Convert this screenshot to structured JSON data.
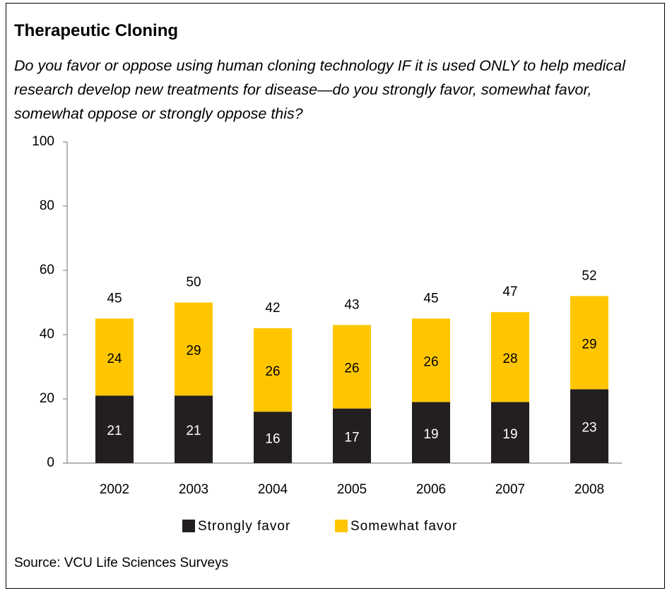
{
  "chart_data": {
    "type": "stacked_bar",
    "title": "Therapeutic Cloning",
    "subtitle": "Do you favor or oppose using human cloning technology IF it is used ONLY to help medical research develop new treatments for disease—do you strongly favor, somewhat favor, somewhat oppose or strongly oppose this?",
    "categories": [
      "2002",
      "2003",
      "2004",
      "2005",
      "2006",
      "2007",
      "2008"
    ],
    "series": [
      {
        "name": "Strongly favor",
        "color": "#231f20",
        "values": [
          21,
          21,
          16,
          17,
          19,
          19,
          23
        ]
      },
      {
        "name": "Somewhat favor",
        "color": "#ffc600",
        "values": [
          24,
          29,
          26,
          26,
          26,
          28,
          29
        ]
      }
    ],
    "totals": [
      45,
      50,
      42,
      43,
      45,
      47,
      52
    ],
    "ylim": [
      0,
      100
    ],
    "yticks": [
      0,
      20,
      40,
      60,
      80,
      100
    ],
    "grid": false,
    "legend": "bottom",
    "source": "Source: VCU Life Sciences Surveys"
  }
}
